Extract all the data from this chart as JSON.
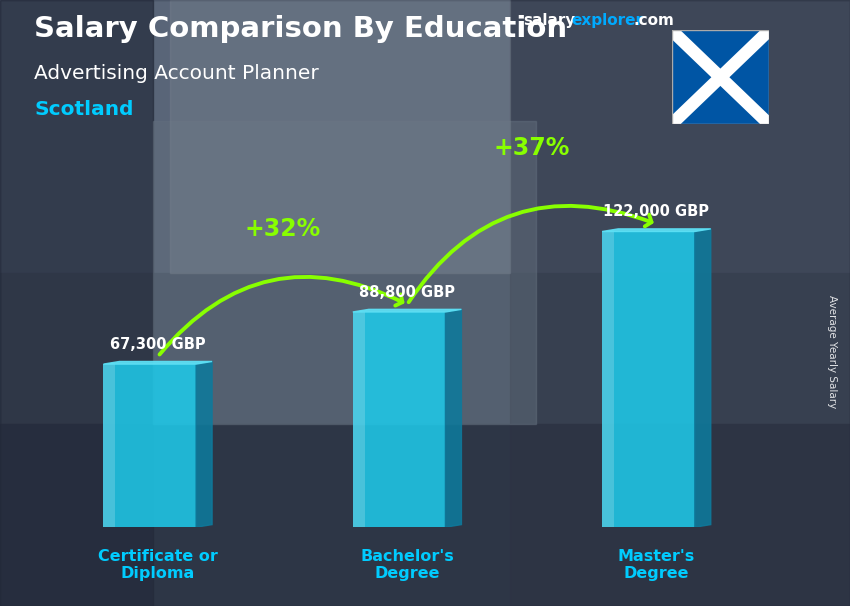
{
  "title_line1": "Salary Comparison By Education",
  "subtitle": "Advertising Account Planner",
  "location": "Scotland",
  "ylabel": "Average Yearly Salary",
  "website_part1": "salary",
  "website_part2": "explorer",
  "website_part3": ".com",
  "categories": [
    "Certificate or\nDiploma",
    "Bachelor's\nDegree",
    "Master's\nDegree"
  ],
  "values": [
    67300,
    88800,
    122000
  ],
  "value_labels": [
    "67,300 GBP",
    "88,800 GBP",
    "122,000 GBP"
  ],
  "pct_labels": [
    "+32%",
    "+37%"
  ],
  "bar_color_front": "#1fc8e8",
  "bar_color_side": "#0e7a9c",
  "bar_color_top": "#5de0f5",
  "title_color": "#ffffff",
  "subtitle_color": "#ffffff",
  "location_color": "#00ccff",
  "value_label_color": "#ffffff",
  "pct_color": "#88ff00",
  "category_label_color": "#00ccff",
  "arrow_color": "#88ff00",
  "website_color1": "#ffffff",
  "website_color2": "#00aaff",
  "website_color3": "#ffffff",
  "bg_color": "#4a5568",
  "figsize": [
    8.5,
    6.06
  ],
  "dpi": 100
}
